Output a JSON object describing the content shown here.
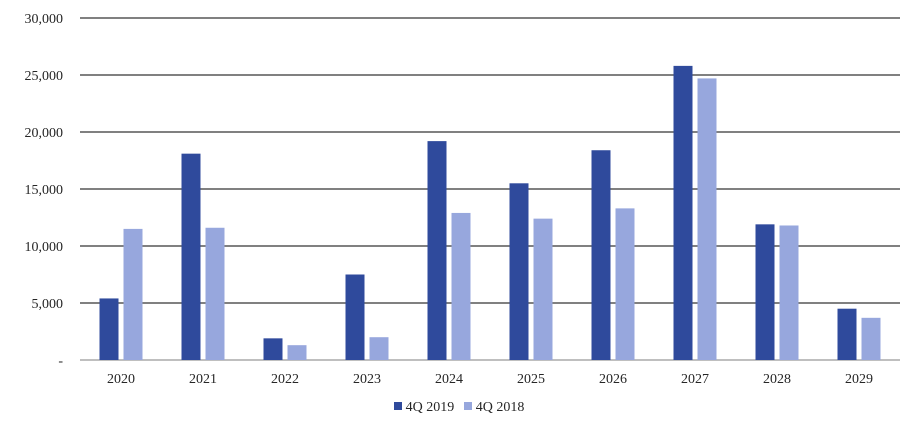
{
  "chart_data": {
    "type": "bar",
    "categories": [
      "2020",
      "2021",
      "2022",
      "2023",
      "2024",
      "2025",
      "2026",
      "2027",
      "2028",
      "2029"
    ],
    "series": [
      {
        "name": "4Q 2019",
        "color": "#2f4a9c",
        "values": [
          5400,
          18100,
          1900,
          7500,
          19200,
          15500,
          18400,
          25800,
          11900,
          4500
        ]
      },
      {
        "name": "4Q 2018",
        "color": "#97a7dd",
        "values": [
          11500,
          11600,
          1300,
          2000,
          12900,
          12400,
          13300,
          24700,
          11800,
          3700
        ]
      }
    ],
    "ylim": [
      0,
      30000
    ],
    "yticks": [
      0,
      5000,
      10000,
      15000,
      20000,
      25000,
      30000
    ],
    "ytick_labels": [
      "-",
      "5,000",
      "10,000",
      "15,000",
      "20,000",
      "25,000",
      "30,000"
    ],
    "grid": true,
    "legend_position": "bottom",
    "title": "",
    "xlabel": "",
    "ylabel": ""
  }
}
